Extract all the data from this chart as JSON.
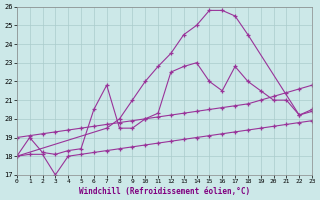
{
  "xlabel": "Windchill (Refroidissement éolien,°C)",
  "bg_color": "#cce8e8",
  "grid_color": "#aacccc",
  "line_color": "#993399",
  "xlim": [
    0,
    23
  ],
  "ylim": [
    17,
    26
  ],
  "xticks": [
    0,
    1,
    2,
    3,
    4,
    5,
    6,
    7,
    8,
    9,
    10,
    11,
    12,
    13,
    14,
    15,
    16,
    17,
    18,
    19,
    20,
    21,
    22,
    23
  ],
  "yticks": [
    17,
    18,
    19,
    20,
    21,
    22,
    23,
    24,
    25,
    26
  ],
  "series": [
    {
      "x": [
        0,
        7,
        8,
        9,
        10,
        11,
        12,
        13,
        14,
        15,
        16,
        17,
        18,
        22,
        23
      ],
      "y": [
        18.0,
        19.5,
        20.0,
        21.0,
        22.0,
        22.8,
        23.5,
        24.5,
        25.0,
        25.8,
        25.8,
        25.5,
        24.5,
        20.2,
        20.5
      ]
    },
    {
      "x": [
        0,
        1,
        2,
        3,
        4,
        5,
        6,
        7,
        8,
        9,
        10,
        11,
        12,
        13,
        14,
        15,
        16,
        17,
        18,
        19,
        20,
        21,
        22,
        23
      ],
      "y": [
        18.0,
        19.0,
        18.2,
        18.1,
        18.3,
        18.4,
        20.5,
        21.8,
        19.5,
        19.5,
        20.0,
        20.3,
        22.5,
        22.8,
        23.0,
        22.0,
        21.5,
        22.8,
        22.0,
        21.5,
        21.0,
        21.0,
        20.2,
        20.4
      ]
    },
    {
      "x": [
        0,
        1,
        2,
        3,
        4,
        5,
        6,
        7,
        8,
        9,
        10,
        11,
        12,
        13,
        14,
        15,
        16,
        17,
        18,
        19,
        20,
        21,
        22,
        23
      ],
      "y": [
        19.0,
        19.1,
        19.2,
        19.3,
        19.4,
        19.5,
        19.6,
        19.7,
        19.8,
        19.9,
        20.0,
        20.1,
        20.2,
        20.3,
        20.4,
        20.5,
        20.6,
        20.7,
        20.8,
        21.0,
        21.2,
        21.4,
        21.6,
        21.8
      ]
    },
    {
      "x": [
        0,
        1,
        2,
        3,
        4,
        5,
        6,
        7,
        8,
        9,
        10,
        11,
        12,
        13,
        14,
        15,
        16,
        17,
        18,
        19,
        20,
        21,
        22,
        23
      ],
      "y": [
        18.0,
        18.1,
        18.1,
        17.0,
        18.0,
        18.1,
        18.2,
        18.3,
        18.4,
        18.5,
        18.6,
        18.7,
        18.8,
        18.9,
        19.0,
        19.1,
        19.2,
        19.3,
        19.4,
        19.5,
        19.6,
        19.7,
        19.8,
        19.9
      ]
    }
  ]
}
